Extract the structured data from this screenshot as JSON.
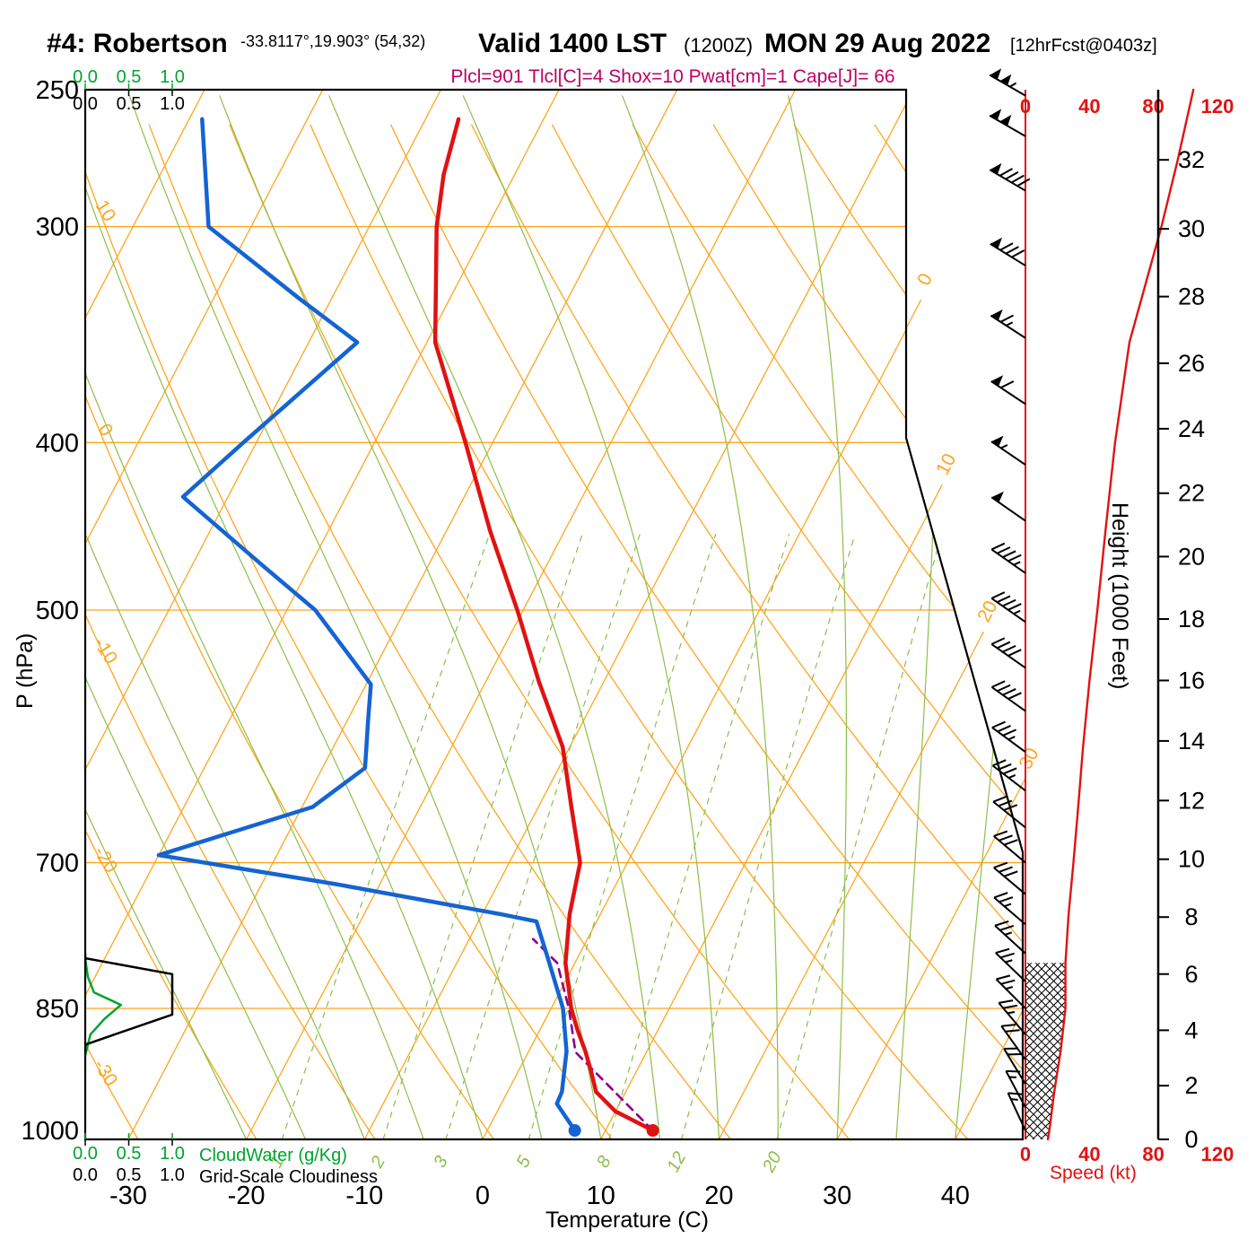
{
  "header": {
    "station": "#4: Robertson",
    "coords": "-33.8117°,19.903° (54,32)",
    "valid_time": "Valid 1400 LST",
    "valid_z": "(1200Z)",
    "valid_date": "MON 29 Aug 2022",
    "forecast_tag": "[12hrFcst@0403z]",
    "indices_line": "Plcl=901 Tlcl[C]=4 Shox=10 Pwat[cm]=1 Cape[J]= 66"
  },
  "axes": {
    "pressure": {
      "label": "P (hPa)",
      "ticks": [
        250,
        300,
        400,
        500,
        700,
        850,
        1000
      ]
    },
    "temperature": {
      "label": "Temperature (C)",
      "ticks": [
        -30,
        -20,
        -10,
        0,
        10,
        20,
        30,
        40
      ]
    },
    "height": {
      "label": "Height (1000 Feet)",
      "ticks": [
        0,
        2,
        4,
        6,
        8,
        10,
        12,
        14,
        16,
        18,
        20,
        22,
        24,
        26,
        28,
        30,
        32
      ]
    },
    "speed": {
      "label": "Speed (kt)",
      "ticks": [
        0,
        40,
        80,
        120
      ]
    },
    "cloudwater": {
      "label": "CloudWater (g/Kg)",
      "scale": [
        "0.0",
        "0.5",
        "1.0"
      ]
    },
    "cloudiness": {
      "label": "Grid-Scale Cloudiness",
      "scale": [
        "0.0",
        "0.5",
        "1.0"
      ]
    },
    "isotherm_right_labels": [
      0,
      10,
      20,
      30
    ],
    "dry_adiabat_left_labels": [
      10,
      0,
      -10,
      -20,
      -30
    ],
    "mixing_ratio_labels": [
      1,
      2,
      3,
      5,
      8,
      12,
      20
    ]
  },
  "colors": {
    "isotherm": "#ffa51e",
    "dry_adiabat": "#ffa51e",
    "moist_adiabat": "#8cbf4a",
    "mixing_ratio": "#8cbf4a",
    "temperature_curve": "#e11212",
    "dewpoint_curve": "#1464d2",
    "parcel_curve": "#8a008a",
    "cloud_water": "#00a32e",
    "cloudiness": "#000000",
    "indices_text": "#bb0066",
    "speed_axis": "#e11212"
  },
  "chart_data": {
    "type": "skewt_log_p_sounding",
    "pressure_hpa_range": [
      250,
      1012
    ],
    "temperature_profile": {
      "pressure_hpa": [
        1000,
        975,
        950,
        925,
        900,
        875,
        850,
        800,
        750,
        700,
        650,
        600,
        550,
        500,
        450,
        400,
        350,
        300,
        280,
        260
      ],
      "temp_c": [
        14,
        10,
        7.5,
        6.2,
        4.8,
        3.2,
        1.7,
        -0.8,
        -2.6,
        -4,
        -7.2,
        -10.6,
        -15.5,
        -20.5,
        -26.3,
        -32.3,
        -39.3,
        -44.3,
        -46,
        -47.2
      ]
    },
    "dewpoint_profile": {
      "pressure_hpa": [
        1000,
        965,
        950,
        900,
        850,
        795,
        757,
        750,
        720,
        693,
        650,
        617,
        578,
        552,
        500,
        470,
        430,
        400,
        350,
        330,
        300,
        260
      ],
      "temp_c": [
        7.4,
        4.7,
        4.6,
        3.2,
        1,
        -2.5,
        -5.1,
        -8.3,
        -23.9,
        -40,
        -29.1,
        -26.4,
        -28.3,
        -29.6,
        -37.6,
        -44.3,
        -53.8,
        -51.1,
        -45.9,
        -52.8,
        -63.6,
        -68.9
      ]
    },
    "parcel_path": {
      "pressure_hpa": [
        1000,
        901,
        850,
        800,
        775
      ],
      "temp_c": [
        14,
        4,
        1.5,
        -1.5,
        -4.6
      ]
    },
    "wind_profile": {
      "pressure_hpa": [
        1012,
        1000,
        950,
        900,
        850,
        800,
        750,
        700,
        650,
        600,
        550,
        500,
        450,
        400,
        350,
        300,
        275,
        250
      ],
      "speed_kt": [
        14,
        15,
        18,
        22,
        25,
        25,
        27,
        30,
        33,
        36,
        40,
        45,
        50,
        56,
        65,
        85,
        95,
        105
      ],
      "dir_deg": [
        335,
        335,
        330,
        323,
        315,
        313,
        310,
        310,
        308,
        306,
        305,
        305,
        305,
        304,
        303,
        301,
        300,
        300
      ]
    },
    "wind_barb_levels_hpa": [
      1000,
      970,
      940,
      910,
      880,
      850,
      820,
      790,
      760,
      730,
      700,
      668,
      636,
      604,
      572,
      540,
      508,
      476,
      444,
      412,
      380,
      348,
      316,
      286,
      266,
      252
    ],
    "cloud_water_gkg": {
      "pressure_hpa": [
        905,
        880,
        862,
        846,
        832,
        815,
        795
      ],
      "values": [
        0,
        0.06,
        0.22,
        0.41,
        0.1,
        0.03,
        0
      ]
    },
    "grid_scale_cloudiness": {
      "pressure_hpa": [
        900,
        892,
        857,
        812,
        795,
        790
      ],
      "values": [
        0,
        0,
        1,
        1,
        0,
        0
      ]
    },
    "stability_indices": {
      "plcl_hpa": 901,
      "tlcl_c": 4,
      "showalter_index": 10,
      "pwat_cm": 1,
      "cape_j_per_kg": 66
    }
  }
}
